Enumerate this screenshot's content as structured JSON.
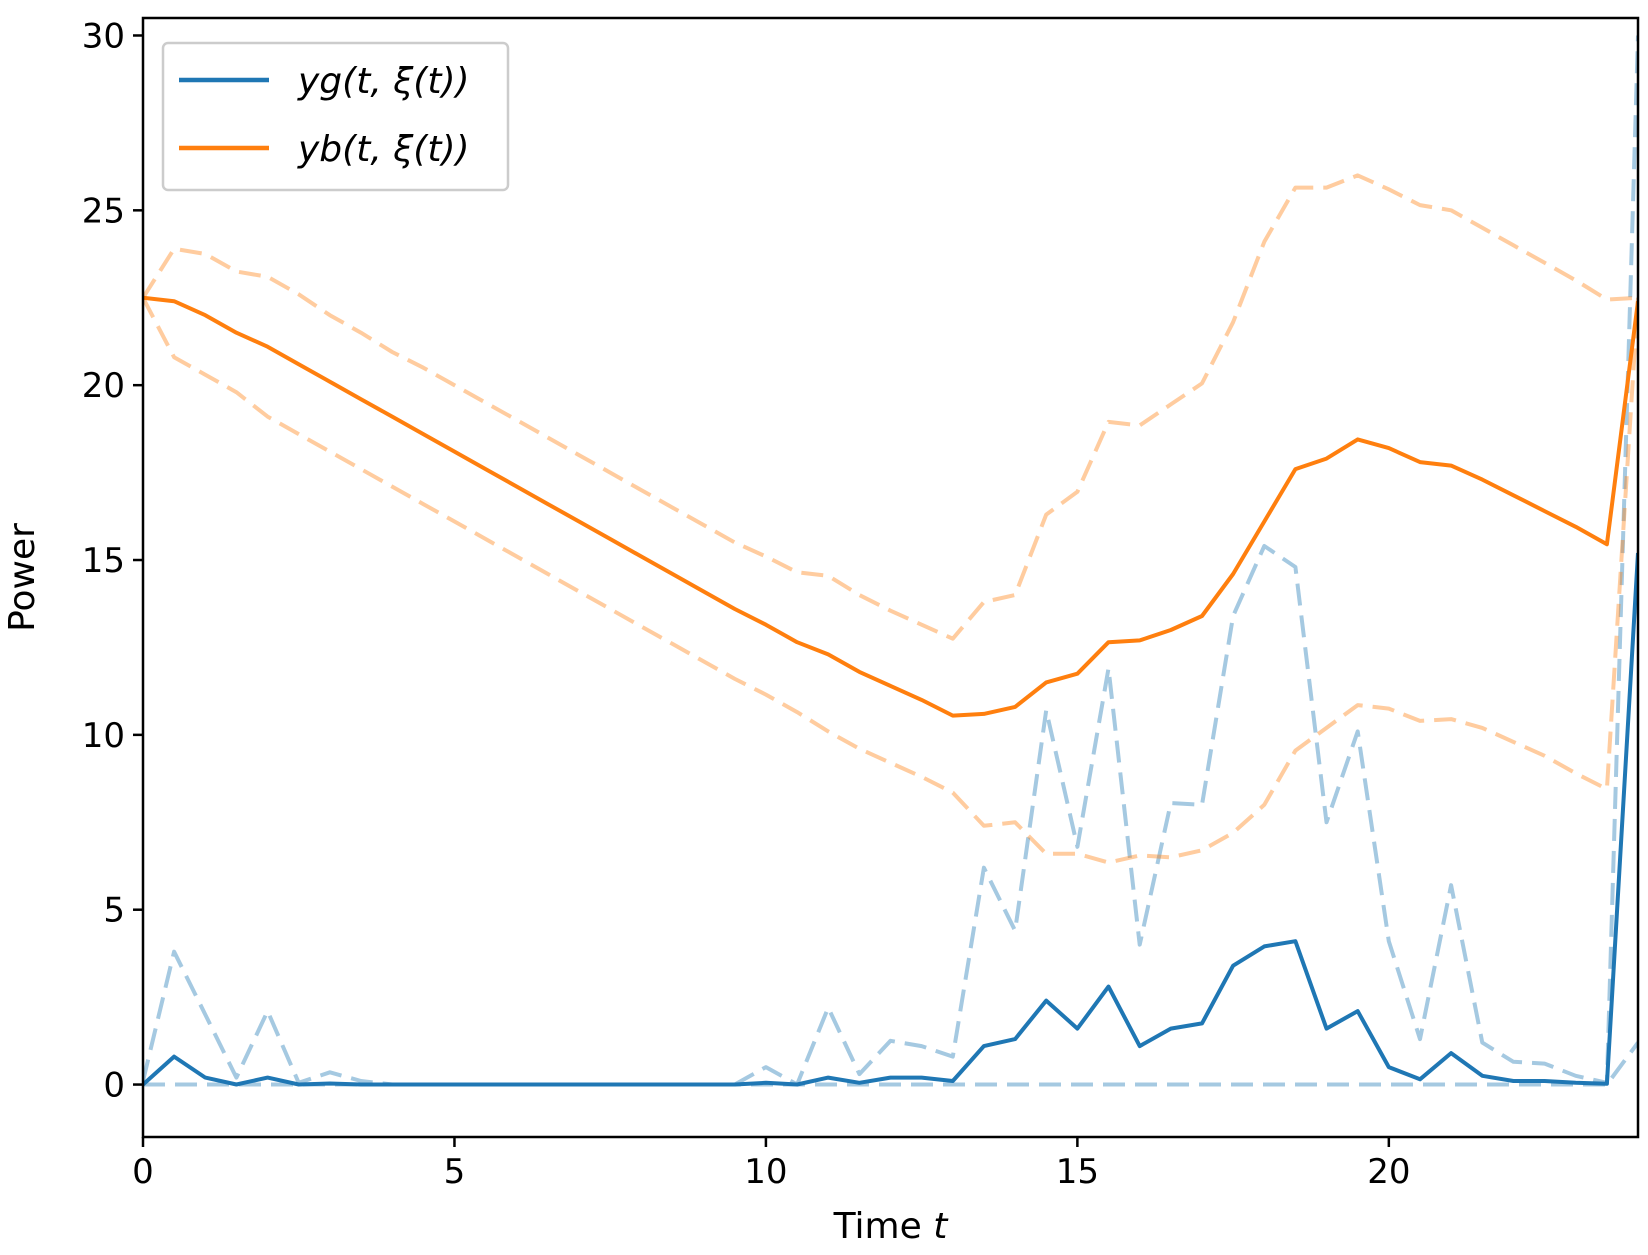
{
  "chart_data": {
    "type": "line",
    "xlabel": "Time",
    "xlabel_var": "t",
    "ylabel": "Power",
    "xlim": [
      0,
      24
    ],
    "ylim": [
      -1.5,
      30.5
    ],
    "xticks": [
      0,
      5,
      10,
      15,
      20
    ],
    "yticks": [
      0,
      5,
      10,
      15,
      20,
      25,
      30
    ],
    "grid": false,
    "legend_position": "top-left",
    "colors": {
      "yg": "#1f77b4",
      "yb": "#ff7f0e"
    },
    "x": [
      0,
      0.5,
      1,
      1.5,
      2,
      2.5,
      3,
      3.5,
      4,
      4.5,
      5,
      5.5,
      6,
      6.5,
      7,
      7.5,
      8,
      8.5,
      9,
      9.5,
      10,
      10.5,
      11,
      11.5,
      12,
      12.5,
      13,
      13.5,
      14,
      14.5,
      15,
      15.5,
      16,
      16.5,
      17,
      17.5,
      18,
      18.5,
      19,
      19.5,
      20,
      20.5,
      21,
      21.5,
      22,
      22.5,
      23,
      23.5,
      24
    ],
    "series": [
      {
        "name": "yg(t, ξ(t))",
        "style": "solid",
        "color": "#1f77b4",
        "values": [
          0,
          0.8,
          0.2,
          0,
          0.2,
          0,
          0.03,
          0,
          0,
          0,
          0,
          0,
          0,
          0,
          0,
          0,
          0,
          0,
          0,
          0,
          0.05,
          0,
          0.2,
          0.05,
          0.2,
          0.2,
          0.1,
          1.1,
          1.3,
          2.4,
          1.6,
          2.8,
          1.1,
          1.6,
          1.75,
          3.4,
          3.95,
          4.1,
          1.6,
          2.1,
          0.5,
          0.15,
          0.9,
          0.25,
          0.1,
          0.1,
          0.05,
          0.02,
          15.2
        ]
      },
      {
        "name": "yb(t, ξ(t))",
        "style": "solid",
        "color": "#ff7f0e",
        "values": [
          22.5,
          22.4,
          22.0,
          21.5,
          21.1,
          20.6,
          20.1,
          19.6,
          19.1,
          18.6,
          18.1,
          17.6,
          17.1,
          16.6,
          16.1,
          15.6,
          15.1,
          14.6,
          14.1,
          13.6,
          13.15,
          12.65,
          12.3,
          11.8,
          11.4,
          11.0,
          10.55,
          10.6,
          10.8,
          11.5,
          11.75,
          12.65,
          12.7,
          13.0,
          13.4,
          14.6,
          16.1,
          17.6,
          17.9,
          18.45,
          18.2,
          17.8,
          17.7,
          17.3,
          16.85,
          16.4,
          15.95,
          15.45,
          22.4
        ]
      },
      {
        "name": "",
        "style": "dashed",
        "color": "#1f77b4",
        "opacity": 0.4,
        "values": [
          0.1,
          3.8,
          2.0,
          0.2,
          2.1,
          0.05,
          0.35,
          0.1,
          0,
          0,
          0,
          0,
          0,
          0,
          0,
          0,
          0,
          0,
          0,
          0,
          0.5,
          0,
          2.2,
          0.3,
          1.25,
          1.1,
          0.8,
          6.2,
          4.4,
          10.7,
          6.8,
          11.9,
          4.0,
          8.05,
          8.0,
          13.4,
          15.4,
          14.8,
          7.5,
          10.1,
          4.1,
          1.3,
          5.7,
          1.2,
          0.65,
          0.6,
          0.25,
          0.05,
          30.0
        ]
      },
      {
        "name": "",
        "style": "dashed",
        "color": "#1f77b4",
        "opacity": 0.4,
        "values": [
          0,
          0,
          0,
          0,
          0,
          0,
          0,
          0,
          0,
          0,
          0,
          0,
          0,
          0,
          0,
          0,
          0,
          0,
          0,
          0,
          0,
          0,
          0,
          0,
          0,
          0,
          0,
          0,
          0,
          0,
          0,
          0,
          0,
          0,
          0,
          0,
          0,
          0,
          0,
          0,
          0,
          0,
          0,
          0,
          0,
          0,
          0,
          0,
          1.2
        ]
      },
      {
        "name": "",
        "style": "dashed",
        "color": "#ff7f0e",
        "opacity": 0.4,
        "values": [
          22.5,
          23.9,
          23.75,
          23.25,
          23.1,
          22.6,
          22.0,
          21.5,
          20.95,
          20.5,
          20.0,
          19.5,
          19.0,
          18.5,
          18.0,
          17.5,
          17.0,
          16.5,
          16.0,
          15.5,
          15.1,
          14.65,
          14.55,
          14.0,
          13.55,
          13.15,
          12.75,
          13.8,
          14.0,
          16.3,
          16.95,
          18.95,
          18.85,
          19.45,
          20.05,
          21.8,
          24.1,
          25.65,
          25.65,
          26.0,
          25.6,
          25.15,
          25.0,
          24.5,
          24.0,
          23.5,
          23.0,
          22.45,
          22.5
        ]
      },
      {
        "name": "",
        "style": "dashed",
        "color": "#ff7f0e",
        "opacity": 0.4,
        "values": [
          22.5,
          20.8,
          20.3,
          19.8,
          19.1,
          18.6,
          18.1,
          17.6,
          17.1,
          16.6,
          16.1,
          15.6,
          15.1,
          14.6,
          14.1,
          13.6,
          13.1,
          12.6,
          12.1,
          11.6,
          11.15,
          10.65,
          10.1,
          9.6,
          9.2,
          8.8,
          8.35,
          7.4,
          7.5,
          6.6,
          6.6,
          6.35,
          6.55,
          6.5,
          6.7,
          7.2,
          8.0,
          9.55,
          10.2,
          10.85,
          10.75,
          10.4,
          10.45,
          10.2,
          9.8,
          9.4,
          8.9,
          8.45,
          22.5
        ]
      }
    ],
    "legend": [
      {
        "label": "yg(t, ξ(t))",
        "color": "#1f77b4"
      },
      {
        "label": "yb(t, ξ(t))",
        "color": "#ff7f0e"
      }
    ]
  }
}
